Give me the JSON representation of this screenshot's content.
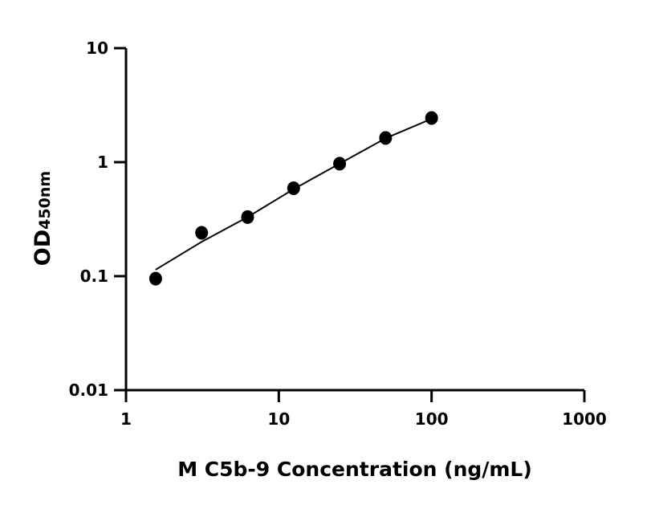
{
  "chart_data": {
    "type": "scatter",
    "title": "",
    "xlabel": "M C5b-9 Concentration (ng/mL)",
    "ylabel_main": "OD",
    "ylabel_sub": "450nm",
    "x_scale": "log",
    "y_scale": "log",
    "xlim": [
      1,
      1000
    ],
    "ylim": [
      0.01,
      10
    ],
    "x_ticks": [
      "1",
      "10",
      "100",
      "1000"
    ],
    "y_ticks": [
      "0.01",
      "0.1",
      "1",
      "10"
    ],
    "grid": false,
    "legend": "none",
    "marker_color": "#000000",
    "series": [
      {
        "x": [
          1.5625,
          3.125,
          6.25,
          12.5,
          25,
          50,
          100
        ],
        "y": [
          0.095,
          0.24,
          0.33,
          0.59,
          0.97,
          1.63,
          2.44
        ]
      }
    ],
    "fit_curve": {
      "x": [
        1.5625,
        3.125,
        6.25,
        12.5,
        25,
        50,
        100
      ],
      "y": [
        0.114,
        0.2,
        0.33,
        0.58,
        0.97,
        1.62,
        2.4
      ]
    }
  }
}
